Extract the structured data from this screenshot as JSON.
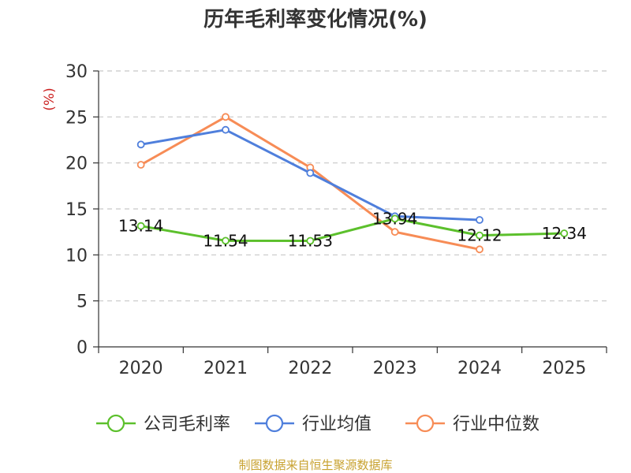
{
  "chart_data": {
    "type": "line",
    "title": "历年毛利率变化情况(%)",
    "ylabel": "(%)",
    "xlabel": "",
    "categories": [
      "2020",
      "2021",
      "2022",
      "2023",
      "2024",
      "2025"
    ],
    "ylim": [
      0,
      30
    ],
    "yticks": [
      0,
      5,
      10,
      15,
      20,
      25,
      30
    ],
    "grid": true,
    "legend_position": "bottom",
    "series": [
      {
        "name": "公司毛利率",
        "color": "#5cc02c",
        "values": [
          13.14,
          11.54,
          11.53,
          13.94,
          12.12,
          12.34
        ],
        "labels": [
          "13.14",
          "11.54",
          "11.53",
          "13.94",
          "12.12",
          "12.34"
        ]
      },
      {
        "name": "行业均值",
        "color": "#4f7fdc",
        "values": [
          22.0,
          23.6,
          18.9,
          14.2,
          13.8,
          null
        ]
      },
      {
        "name": "行业中位数",
        "color": "#f78c56",
        "values": [
          19.8,
          25.0,
          19.5,
          12.5,
          10.6,
          null
        ]
      }
    ]
  },
  "unit_color": "#cc2222",
  "source": "制图数据来自恒生聚源数据库"
}
